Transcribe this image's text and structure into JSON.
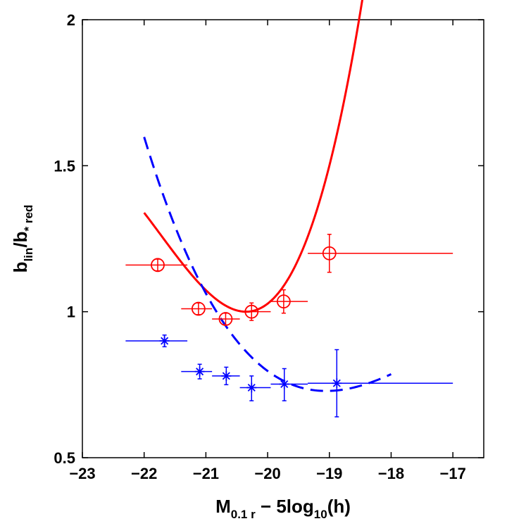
{
  "chart_data": {
    "type": "scatter",
    "xlabel": {
      "main": "M",
      "sub": "0.1 r",
      "rest": " − 5log",
      "sub2": "10",
      "tail": "(h)"
    },
    "ylabel": {
      "b1": "b",
      "s1": "lin",
      "mid": "/b",
      "s2": "* red"
    },
    "xlim": [
      -23,
      -16.5
    ],
    "ylim": [
      0.5,
      2
    ],
    "xticks": [
      -23,
      -22,
      -21,
      -20,
      -19,
      -18,
      -17
    ],
    "xtick_labels": [
      "−23",
      "−22",
      "−21",
      "−20",
      "−19",
      "−18",
      "−17"
    ],
    "yticks": [
      0.5,
      1,
      1.5,
      2
    ],
    "ytick_labels": [
      "0.5",
      "1",
      "1.5",
      "2"
    ],
    "series": [
      {
        "name": "red",
        "color": "#ff0000",
        "marker": "circle",
        "points": [
          {
            "x": -21.78,
            "y": 1.16,
            "xlo": -22.3,
            "xhi": -21.3,
            "ylo": 1.14,
            "yhi": 1.18
          },
          {
            "x": -21.12,
            "y": 1.01,
            "xlo": -21.4,
            "xhi": -20.9,
            "ylo": 0.99,
            "yhi": 1.03
          },
          {
            "x": -20.68,
            "y": 0.975,
            "xlo": -20.9,
            "xhi": -20.45,
            "ylo": 0.955,
            "yhi": 0.995
          },
          {
            "x": -20.26,
            "y": 1.0,
            "xlo": -20.45,
            "xhi": -19.95,
            "ylo": 0.97,
            "yhi": 1.03
          },
          {
            "x": -19.74,
            "y": 1.035,
            "xlo": -19.95,
            "xhi": -19.35,
            "ylo": 0.995,
            "yhi": 1.075
          },
          {
            "x": -19.0,
            "y": 1.2,
            "xlo": -19.35,
            "xhi": -17.0,
            "ylo": 1.135,
            "yhi": 1.265
          }
        ]
      },
      {
        "name": "blue",
        "color": "#0000ff",
        "marker": "star",
        "points": [
          {
            "x": -21.67,
            "y": 0.9,
            "xlo": -22.3,
            "xhi": -21.3,
            "ylo": 0.88,
            "yhi": 0.92
          },
          {
            "x": -21.1,
            "y": 0.795,
            "xlo": -21.4,
            "xhi": -20.9,
            "ylo": 0.77,
            "yhi": 0.82
          },
          {
            "x": -20.67,
            "y": 0.78,
            "xlo": -20.9,
            "xhi": -20.45,
            "ylo": 0.75,
            "yhi": 0.81
          },
          {
            "x": -20.26,
            "y": 0.74,
            "xlo": -20.45,
            "xhi": -19.95,
            "ylo": 0.695,
            "yhi": 0.78
          },
          {
            "x": -19.73,
            "y": 0.752,
            "xlo": -19.95,
            "xhi": -19.35,
            "ylo": 0.695,
            "yhi": 0.805
          },
          {
            "x": -18.88,
            "y": 0.755,
            "xlo": -19.35,
            "xhi": -17.0,
            "ylo": 0.64,
            "yhi": 0.87
          }
        ]
      }
    ],
    "fits": [
      {
        "name": "red-fit",
        "color": "#ff0000",
        "style": "solid",
        "xmin": -22.0,
        "xmax": -18.0,
        "coeffs": [
          1.0,
          0.0,
          0.207,
          0.05
        ],
        "x0": -20.35
      },
      {
        "name": "blue-fit",
        "color": "#0000ff",
        "style": "dashed",
        "xmin": -22.0,
        "xmax": -18.0,
        "coeffs": [
          0.73,
          -0.02,
          0.07,
          -0.012
        ],
        "x0": -19.2
      }
    ]
  }
}
